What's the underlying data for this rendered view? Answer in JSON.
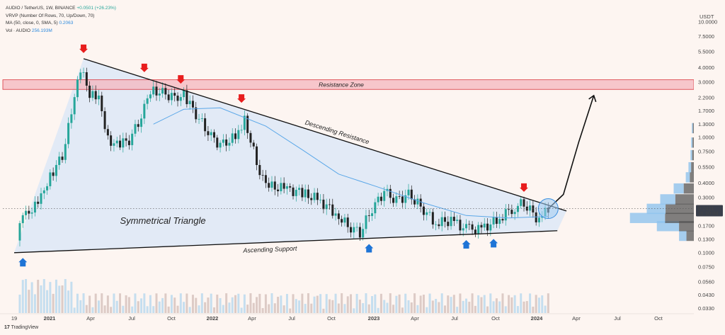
{
  "header": {
    "symbol_line": "AUDIO / TetherUS, 1W, BINANCE",
    "change": "+0.0501 (+26.23%)",
    "vrvp_line": "VRVP (Number Of Rows, 70, Up/Down, 70)",
    "ma_line": "MA (50, close, 0, SMA, 5)",
    "ma_value": "0.2063",
    "vol_line": "Vol · AUDIO",
    "vol_value": "256.193M"
  },
  "price_axis": {
    "currency": "USDT",
    "ticks": [
      "10.0000",
      "7.5000",
      "5.5000",
      "4.0000",
      "3.0000",
      "2.2000",
      "1.7000",
      "1.3000",
      "1.0000",
      "0.7500",
      "0.5500",
      "0.4000",
      "0.3000",
      "0.2200",
      "0.1700",
      "0.1300",
      "0.1000",
      "0.0750",
      "0.0560",
      "0.0430",
      "0.0330"
    ],
    "current_price": "0.2411",
    "countdown": "11:10:04"
  },
  "time_axis": {
    "labels": [
      "19",
      "2021",
      "Apr",
      "Jul",
      "Oct",
      "2022",
      "Apr",
      "Jul",
      "Oct",
      "2023",
      "Apr",
      "Jul",
      "Oct",
      "2024",
      "Apr",
      "Jul",
      "Oct"
    ]
  },
  "annotations": {
    "resistance_zone": "Resistance Zone",
    "descending_resistance": "Descending Resistance",
    "symmetrical_triangle": "Symmetrical Triangle",
    "ascending_support": "Ascending Support"
  },
  "footer": {
    "brand": "TradingView",
    "logo": "17"
  },
  "colors": {
    "up": "#26a69a",
    "down": "#222222",
    "ma": "#5aa7e8",
    "triangle_fill": "#dde8f7",
    "resistance_fill": "#f4b5bd",
    "resistance_border": "#d9363e",
    "arrow_down": "#e81d1d",
    "arrow_up": "#1e74d6",
    "volume_up": "#b7d8ef",
    "volume_down": "#d4c0bc",
    "vrvp_up": "#8fc3ee",
    "vrvp_down": "#555555"
  },
  "chart_data": {
    "type": "candlestick",
    "title": "AUDIO / TetherUS, 1W, BINANCE",
    "y_scale": "log",
    "ylim": [
      0.03,
      12
    ],
    "x_range": [
      "2020-10-19",
      "2024-12-31"
    ],
    "series": [
      {
        "name": "AUDIO / TetherUS",
        "points": [
          [
            "2020-10-25",
            0.15
          ],
          [
            "2020-11-08",
            0.2
          ],
          [
            "2020-11-29",
            0.24
          ],
          [
            "2020-12-20",
            0.32
          ],
          [
            "2021-01-10",
            0.45
          ],
          [
            "2021-02-07",
            0.7
          ],
          [
            "2021-02-28",
            1.6
          ],
          [
            "2021-03-21",
            4.0
          ],
          [
            "2021-04-11",
            2.4
          ],
          [
            "2021-05-02",
            2.3
          ],
          [
            "2021-05-23",
            0.95
          ],
          [
            "2021-06-13",
            0.85
          ],
          [
            "2021-07-11",
            0.95
          ],
          [
            "2021-08-08",
            1.5
          ],
          [
            "2021-08-29",
            2.6
          ],
          [
            "2021-09-26",
            2.4
          ],
          [
            "2021-10-24",
            2.2
          ],
          [
            "2021-11-14",
            2.3
          ],
          [
            "2021-12-12",
            1.6
          ],
          [
            "2022-01-09",
            1.1
          ],
          [
            "2022-02-06",
            0.85
          ],
          [
            "2022-03-13",
            1.0
          ],
          [
            "2022-04-03",
            1.45
          ],
          [
            "2022-05-01",
            0.6
          ],
          [
            "2022-05-22",
            0.38
          ],
          [
            "2022-07-03",
            0.36
          ],
          [
            "2022-08-14",
            0.33
          ],
          [
            "2022-09-18",
            0.29
          ],
          [
            "2022-10-30",
            0.22
          ],
          [
            "2022-11-27",
            0.17
          ],
          [
            "2022-12-25",
            0.15
          ],
          [
            "2023-01-22",
            0.24
          ],
          [
            "2023-02-19",
            0.34
          ],
          [
            "2023-03-19",
            0.28
          ],
          [
            "2023-04-16",
            0.32
          ],
          [
            "2023-05-14",
            0.25
          ],
          [
            "2023-06-18",
            0.18
          ],
          [
            "2023-07-23",
            0.19
          ],
          [
            "2023-08-27",
            0.16
          ],
          [
            "2023-10-01",
            0.16
          ],
          [
            "2023-11-05",
            0.19
          ],
          [
            "2023-12-10",
            0.24
          ],
          [
            "2024-01-07",
            0.27
          ],
          [
            "2024-02-11",
            0.19
          ],
          [
            "2024-03-03",
            0.2411
          ]
        ]
      },
      {
        "name": "MA (50, close, 0, SMA, 5)",
        "points": [
          [
            "2021-09-05",
            1.3
          ],
          [
            "2021-11-14",
            1.75
          ],
          [
            "2022-02-06",
            1.8
          ],
          [
            "2022-05-22",
            1.25
          ],
          [
            "2022-08-14",
            0.78
          ],
          [
            "2022-11-06",
            0.48
          ],
          [
            "2023-02-05",
            0.37
          ],
          [
            "2023-05-21",
            0.27
          ],
          [
            "2023-08-27",
            0.21
          ],
          [
            "2023-12-03",
            0.2
          ],
          [
            "2024-03-03",
            0.2063
          ]
        ]
      },
      {
        "name": "Descending Resistance",
        "points": [
          [
            "2021-03-28",
            4.8
          ],
          [
            "2024-04-14",
            0.23
          ]
        ]
      },
      {
        "name": "Ascending Support",
        "points": [
          [
            "2020-10-19",
            0.1
          ],
          [
            "2024-03-24",
            0.155
          ]
        ]
      },
      {
        "name": "Resistance Zone",
        "band": [
          2.6,
          3.15
        ]
      },
      {
        "name": "projection",
        "points": [
          [
            "2024-03-03",
            0.24
          ],
          [
            "2024-04-07",
            0.32
          ],
          [
            "2024-05-12",
            0.9
          ],
          [
            "2024-06-16",
            2.3
          ]
        ]
      }
    ],
    "down_markers": [
      "2021-03-28",
      "2021-08-15",
      "2021-11-07",
      "2022-03-27",
      "2024-01-07"
    ],
    "up_markers": [
      "2020-11-08",
      "2023-01-15",
      "2023-08-27",
      "2023-10-29"
    ]
  }
}
